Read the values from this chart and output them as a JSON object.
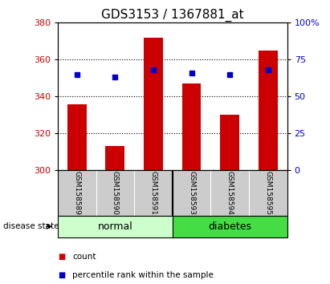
{
  "title": "GDS3153 / 1367881_at",
  "samples": [
    "GSM158589",
    "GSM158590",
    "GSM158591",
    "GSM158593",
    "GSM158594",
    "GSM158595"
  ],
  "counts": [
    336,
    313,
    372,
    347,
    330,
    365
  ],
  "percentiles": [
    65,
    63,
    68,
    66,
    65,
    68
  ],
  "ymin": 300,
  "ymax": 380,
  "yticks_left": [
    300,
    320,
    340,
    360,
    380
  ],
  "yticks_right": [
    0,
    25,
    50,
    75,
    100
  ],
  "grid_values": [
    320,
    340,
    360
  ],
  "bar_color": "#cc0000",
  "square_color": "#0000cc",
  "normal_color": "#ccffcc",
  "diabetes_color": "#44dd44",
  "sample_bg_color": "#cccccc",
  "bar_width": 0.5,
  "title_fontsize": 11,
  "tick_fontsize": 8,
  "sample_fontsize": 6.5,
  "group_fontsize": 9,
  "legend_fontsize": 7.5
}
